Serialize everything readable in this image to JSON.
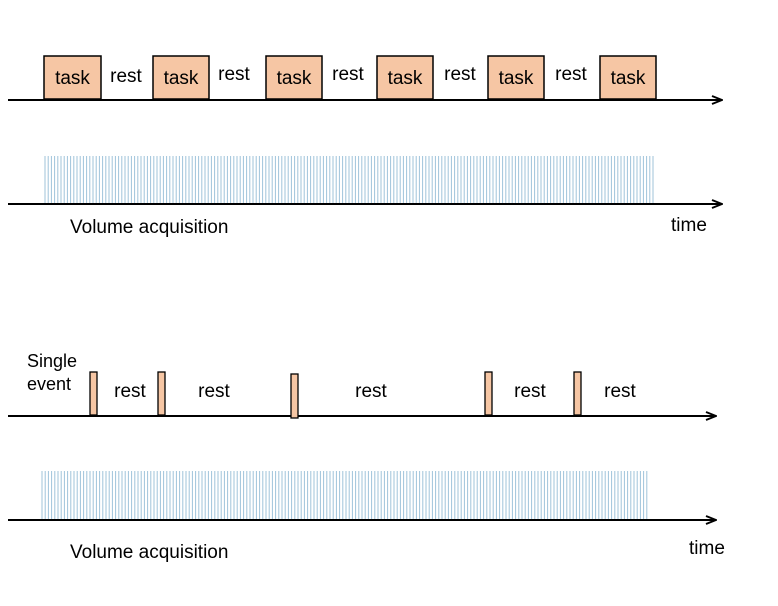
{
  "block_design": {
    "sequence": [
      {
        "label": "task",
        "type": "task"
      },
      {
        "label": "rest",
        "type": "rest"
      },
      {
        "label": "task",
        "type": "task"
      },
      {
        "label": "rest",
        "type": "rest"
      },
      {
        "label": "task",
        "type": "task"
      },
      {
        "label": "rest",
        "type": "rest"
      },
      {
        "label": "task",
        "type": "task"
      },
      {
        "label": "rest",
        "type": "rest"
      },
      {
        "label": "task",
        "type": "task"
      },
      {
        "label": "rest",
        "type": "rest"
      },
      {
        "label": "task",
        "type": "task"
      }
    ],
    "acquisition_label": "Volume acquisition",
    "time_label": "time"
  },
  "event_design": {
    "event_label_line1": "Single",
    "event_label_line2": "event",
    "rest_labels": [
      "rest",
      "rest",
      "rest",
      "rest",
      "rest"
    ],
    "acquisition_label": "Volume acquisition",
    "time_label": "time"
  },
  "colors": {
    "task_fill": "#f6c6a4",
    "event_fill": "#f6c6a4",
    "stroke": "#000000",
    "acquisition_lines": "#9fc3da"
  }
}
